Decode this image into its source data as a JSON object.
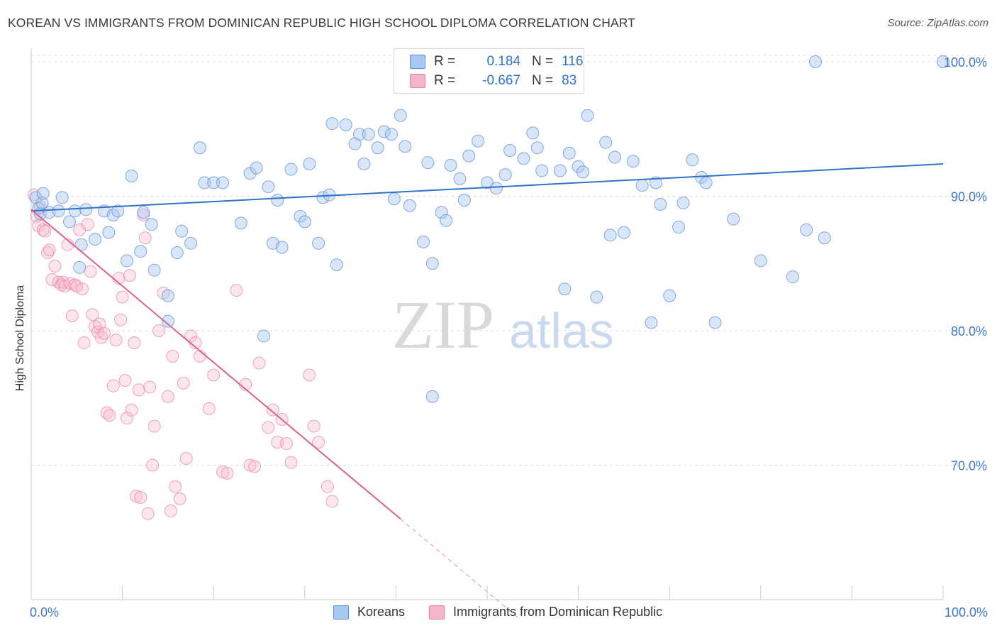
{
  "title": "KOREAN VS IMMIGRANTS FROM DOMINICAN REPUBLIC HIGH SCHOOL DIPLOMA CORRELATION CHART",
  "source": "Source: ZipAtlas.com",
  "watermark": {
    "zip": "ZIP",
    "atlas": "atlas"
  },
  "colors": {
    "blue": "#5b8fd9",
    "blue_fill": "#a9c8f0",
    "blue_line": "#2f72c8",
    "pink": "#e87da0",
    "pink_fill": "#f5b6cb",
    "pink_line": "#e0608c",
    "axis_label": "#3f78c8",
    "grid": "#dddddd"
  },
  "legend": {
    "rows": [
      {
        "r_label": "R =",
        "r_value": "0.184",
        "n_label": "N =",
        "n_value": "116",
        "series": "blue"
      },
      {
        "r_label": "R =",
        "r_value": "-0.667",
        "n_label": "N =",
        "n_value": "83",
        "series": "pink"
      }
    ]
  },
  "bottom_legend": {
    "koreans": "Koreans",
    "dominican": "Immigrants from Dominican Republic"
  },
  "chart_data": {
    "type": "scatter",
    "title": "KOREAN VS IMMIGRANTS FROM DOMINICAN REPUBLIC HIGH SCHOOL DIPLOMA CORRELATION CHART",
    "xlabel": "",
    "ylabel": "High School Diploma",
    "xlim": [
      0,
      100
    ],
    "ylim": [
      60,
      101
    ],
    "x_tick_labels": [
      "0.0%",
      "100.0%"
    ],
    "y_ticks": [
      70,
      80,
      90,
      100
    ],
    "y_tick_labels": [
      "70.0%",
      "80.0%",
      "90.0%",
      "100.0%"
    ],
    "grid": true,
    "legend_position": "top-center",
    "series": [
      {
        "name": "Koreans",
        "color": "#5b8fd9",
        "r": 0.184,
        "n": 116,
        "trend": {
          "x": [
            0,
            100
          ],
          "y": [
            88.9,
            92.4
          ]
        },
        "points": [
          [
            0.5,
            89.9
          ],
          [
            0.8,
            89.1
          ],
          [
            1.0,
            88.7
          ],
          [
            1.2,
            89.5
          ],
          [
            1.3,
            90.2
          ],
          [
            2.0,
            88.8
          ],
          [
            3.0,
            88.9
          ],
          [
            3.4,
            89.9
          ],
          [
            4.2,
            88.1
          ],
          [
            4.8,
            88.9
          ],
          [
            5.3,
            84.7
          ],
          [
            5.5,
            86.4
          ],
          [
            6.0,
            89.0
          ],
          [
            7.0,
            86.8
          ],
          [
            8.0,
            88.9
          ],
          [
            8.5,
            87.3
          ],
          [
            9.0,
            88.6
          ],
          [
            9.5,
            88.9
          ],
          [
            10.5,
            85.2
          ],
          [
            11.0,
            91.5
          ],
          [
            12.0,
            85.9
          ],
          [
            12.3,
            88.8
          ],
          [
            13.2,
            87.9
          ],
          [
            13.5,
            84.5
          ],
          [
            15.0,
            82.6
          ],
          [
            15.0,
            80.7
          ],
          [
            16.0,
            85.8
          ],
          [
            16.5,
            87.4
          ],
          [
            17.5,
            86.5
          ],
          [
            18.5,
            93.6
          ],
          [
            19.0,
            91.0
          ],
          [
            20.0,
            91.0
          ],
          [
            21.0,
            91.0
          ],
          [
            23.0,
            88.0
          ],
          [
            24.0,
            91.7
          ],
          [
            24.7,
            92.1
          ],
          [
            25.5,
            79.6
          ],
          [
            26.0,
            90.7
          ],
          [
            26.5,
            86.5
          ],
          [
            27.0,
            89.7
          ],
          [
            27.5,
            86.2
          ],
          [
            28.5,
            92.0
          ],
          [
            29.5,
            88.5
          ],
          [
            30.0,
            88.1
          ],
          [
            30.5,
            92.4
          ],
          [
            31.5,
            86.5
          ],
          [
            32.0,
            89.9
          ],
          [
            32.7,
            90.1
          ],
          [
            33.0,
            95.4
          ],
          [
            33.5,
            84.9
          ],
          [
            34.5,
            95.3
          ],
          [
            35.5,
            93.9
          ],
          [
            36.0,
            94.6
          ],
          [
            36.5,
            92.4
          ],
          [
            37.0,
            94.6
          ],
          [
            38.0,
            93.6
          ],
          [
            38.7,
            94.8
          ],
          [
            39.5,
            94.6
          ],
          [
            39.8,
            89.8
          ],
          [
            40.5,
            96.0
          ],
          [
            41.0,
            93.7
          ],
          [
            41.5,
            89.3
          ],
          [
            42.5,
            98.5
          ],
          [
            43.0,
            86.6
          ],
          [
            43.5,
            92.5
          ],
          [
            44.0,
            85.0
          ],
          [
            45.0,
            88.8
          ],
          [
            45.5,
            88.2
          ],
          [
            46.0,
            92.3
          ],
          [
            47.0,
            91.3
          ],
          [
            47.5,
            89.7
          ],
          [
            48.0,
            93.0
          ],
          [
            49.0,
            94.1
          ],
          [
            50.0,
            91.0
          ],
          [
            51.0,
            90.6
          ],
          [
            52.0,
            91.6
          ],
          [
            52.5,
            93.4
          ],
          [
            53.0,
            100.0
          ],
          [
            54.0,
            92.8
          ],
          [
            55.0,
            94.7
          ],
          [
            55.5,
            93.6
          ],
          [
            56.0,
            91.9
          ],
          [
            58.0,
            91.9
          ],
          [
            58.5,
            83.1
          ],
          [
            59.0,
            93.2
          ],
          [
            60.0,
            92.2
          ],
          [
            60.5,
            91.8
          ],
          [
            61.0,
            96.0
          ],
          [
            62.0,
            82.5
          ],
          [
            63.0,
            94.0
          ],
          [
            63.5,
            87.1
          ],
          [
            64.0,
            92.9
          ],
          [
            65.0,
            87.3
          ],
          [
            66.0,
            92.6
          ],
          [
            67.0,
            90.8
          ],
          [
            68.0,
            80.6
          ],
          [
            68.5,
            91.0
          ],
          [
            69.0,
            89.4
          ],
          [
            70.0,
            82.6
          ],
          [
            71.0,
            87.7
          ],
          [
            71.5,
            89.5
          ],
          [
            72.5,
            92.7
          ],
          [
            73.5,
            91.4
          ],
          [
            74.0,
            91.0
          ],
          [
            75.0,
            80.6
          ],
          [
            77.0,
            88.3
          ],
          [
            80.0,
            85.2
          ],
          [
            83.5,
            84.0
          ],
          [
            85.0,
            87.5
          ],
          [
            87.0,
            86.9
          ],
          [
            86.0,
            100.0
          ],
          [
            100.0,
            100.0
          ],
          [
            44.0,
            75.1
          ]
        ]
      },
      {
        "name": "Immigrants from Dominican Republic",
        "color": "#e87da0",
        "r": -0.667,
        "n": 83,
        "trend": {
          "x": [
            0,
            40.5
          ],
          "y": [
            89.0,
            66.0
          ]
        },
        "trend_dashed": {
          "x": [
            40.5,
            53.5
          ],
          "y": [
            66.0,
            58.6
          ]
        },
        "points": [
          [
            0.3,
            90.1
          ],
          [
            0.6,
            88.5
          ],
          [
            0.8,
            87.8
          ],
          [
            1.0,
            89.2
          ],
          [
            1.3,
            87.5
          ],
          [
            1.5,
            87.4
          ],
          [
            1.8,
            85.8
          ],
          [
            2.0,
            86.0
          ],
          [
            2.3,
            83.8
          ],
          [
            2.6,
            84.8
          ],
          [
            3.0,
            83.6
          ],
          [
            3.3,
            83.4
          ],
          [
            3.5,
            83.6
          ],
          [
            3.7,
            83.3
          ],
          [
            4.0,
            86.4
          ],
          [
            4.3,
            83.5
          ],
          [
            4.5,
            81.1
          ],
          [
            4.8,
            83.4
          ],
          [
            5.0,
            83.3
          ],
          [
            5.3,
            87.5
          ],
          [
            5.6,
            83.1
          ],
          [
            5.8,
            79.1
          ],
          [
            6.2,
            87.9
          ],
          [
            6.5,
            84.4
          ],
          [
            6.7,
            81.2
          ],
          [
            7.0,
            80.3
          ],
          [
            7.3,
            79.9
          ],
          [
            7.5,
            80.5
          ],
          [
            7.7,
            79.5
          ],
          [
            8.0,
            79.8
          ],
          [
            8.3,
            73.9
          ],
          [
            8.6,
            73.7
          ],
          [
            9.0,
            75.9
          ],
          [
            9.3,
            79.3
          ],
          [
            9.6,
            83.9
          ],
          [
            9.8,
            80.8
          ],
          [
            10.0,
            82.5
          ],
          [
            10.3,
            76.3
          ],
          [
            10.5,
            73.5
          ],
          [
            10.8,
            84.1
          ],
          [
            11.0,
            74.1
          ],
          [
            11.3,
            79.1
          ],
          [
            11.5,
            67.7
          ],
          [
            11.8,
            75.6
          ],
          [
            12.0,
            67.6
          ],
          [
            12.3,
            88.6
          ],
          [
            12.5,
            86.9
          ],
          [
            12.8,
            66.4
          ],
          [
            13.0,
            75.8
          ],
          [
            13.3,
            70.0
          ],
          [
            13.5,
            72.9
          ],
          [
            14.0,
            80.0
          ],
          [
            14.5,
            82.8
          ],
          [
            15.0,
            75.1
          ],
          [
            15.3,
            66.6
          ],
          [
            15.5,
            78.1
          ],
          [
            15.8,
            68.4
          ],
          [
            16.3,
            67.5
          ],
          [
            16.7,
            76.1
          ],
          [
            17.0,
            70.5
          ],
          [
            17.5,
            79.6
          ],
          [
            18.0,
            79.1
          ],
          [
            18.5,
            78.1
          ],
          [
            19.5,
            74.2
          ],
          [
            20.0,
            76.7
          ],
          [
            21.0,
            69.5
          ],
          [
            21.5,
            69.4
          ],
          [
            22.5,
            83.0
          ],
          [
            23.5,
            76.0
          ],
          [
            24.0,
            70.0
          ],
          [
            24.5,
            69.9
          ],
          [
            25.0,
            77.6
          ],
          [
            26.0,
            72.8
          ],
          [
            26.5,
            74.1
          ],
          [
            27.0,
            71.7
          ],
          [
            27.5,
            73.4
          ],
          [
            28.0,
            71.6
          ],
          [
            28.5,
            70.2
          ],
          [
            30.5,
            76.7
          ],
          [
            31.0,
            72.9
          ],
          [
            31.5,
            71.7
          ],
          [
            32.5,
            68.4
          ],
          [
            33.0,
            67.3
          ]
        ]
      }
    ]
  }
}
